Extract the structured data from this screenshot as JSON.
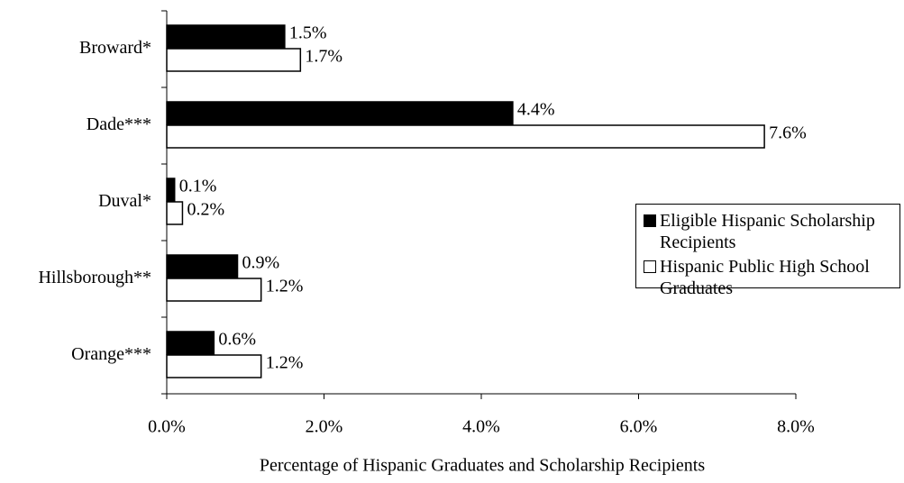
{
  "chart_data": {
    "type": "barh",
    "xlabel": "Percentage of Hispanic Graduates and Scholarship Recipients",
    "categories": [
      "Broward*",
      "Dade***",
      "Duval*",
      "Hillsborough**",
      "Orange***"
    ],
    "series": [
      {
        "name": "Eligible Hispanic Scholarship Recipients",
        "color": "#000000",
        "values": [
          1.5,
          4.4,
          0.1,
          0.9,
          0.6
        ],
        "value_labels": [
          "1.5%",
          "4.4%",
          "0.1%",
          "0.9%",
          "0.6%"
        ]
      },
      {
        "name": "Hispanic Public High School Graduates",
        "color": "#ffffff",
        "values": [
          1.7,
          7.6,
          0.2,
          1.2,
          1.2
        ],
        "value_labels": [
          "1.7%",
          "7.6%",
          "0.2%",
          "1.2%",
          "1.2%"
        ]
      }
    ],
    "xlim": [
      0,
      8
    ],
    "xticks": [
      {
        "value": 0,
        "label": "0.0%"
      },
      {
        "value": 2,
        "label": "2.0%"
      },
      {
        "value": 4,
        "label": "4.0%"
      },
      {
        "value": 6,
        "label": "6.0%"
      },
      {
        "value": 8,
        "label": "8.0%"
      }
    ],
    "legend": "right"
  }
}
